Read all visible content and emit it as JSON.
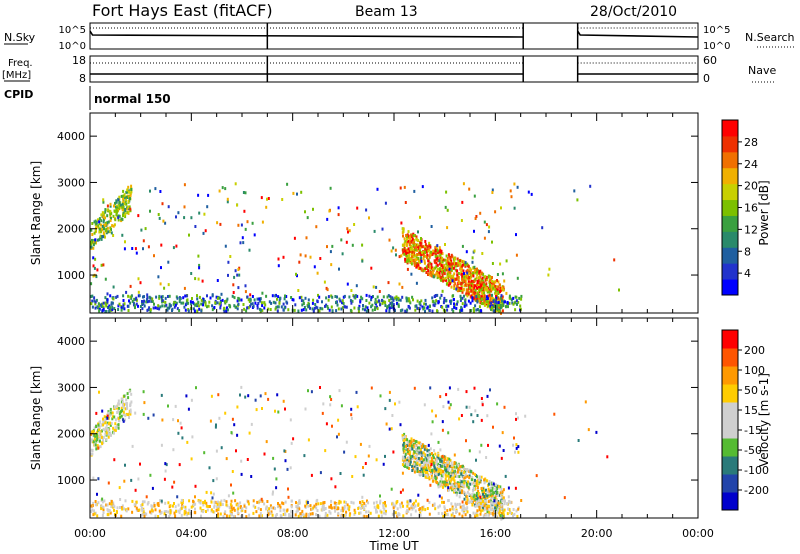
{
  "header": {
    "station": "Fort Hays East (fitACF)",
    "beam": "Beam 13",
    "date": "28/Oct/2010"
  },
  "strips": {
    "noise": {
      "left_label": "N.Sky",
      "right_label": "N.Search",
      "left_ticks": [
        "10^5",
        "10^0"
      ],
      "right_ticks": [
        "10^5",
        "10^0"
      ]
    },
    "freq": {
      "left_label": "Freq.",
      "left_unit": "[MHz]",
      "right_label": "Nave",
      "left_ticks": [
        "18",
        "8"
      ],
      "right_ticks": [
        "60",
        "0"
      ]
    },
    "cpid": {
      "label": "CPID",
      "program": "normal 150"
    }
  },
  "colorbars": {
    "power": {
      "title": "Power [dB]",
      "ticks": [
        "28",
        "24",
        "20",
        "16",
        "12",
        "8",
        "4"
      ],
      "colors": [
        "#0000ff",
        "#2233cc",
        "#1f5fa0",
        "#2a8a6a",
        "#3aa040",
        "#7cc000",
        "#c8d000",
        "#f0b000",
        "#f07000",
        "#ee3000",
        "#ff0000"
      ]
    },
    "velocity": {
      "title": "Velocity [m s-1]",
      "ticks": [
        "200",
        "100",
        "50",
        "15",
        "-15",
        "-50",
        "-100",
        "-200"
      ],
      "colors": [
        "#0000cc",
        "#2244aa",
        "#2a7a7a",
        "#55bb33",
        "#cfcfcf",
        "#cfcfcf",
        "#ffcc00",
        "#ff9900",
        "#ff5500",
        "#ff0000"
      ]
    }
  },
  "chart_data": [
    {
      "type": "heatmap",
      "quantity": "Power",
      "ylabel": "Slant Range [km]",
      "xlabel": "Time UT",
      "xlim": [
        "00:00",
        "24:00"
      ],
      "ylim": [
        180,
        4500
      ],
      "x_ticks": [
        "00:00",
        "04:00",
        "08:00",
        "12:00",
        "16:00",
        "20:00",
        "00:00"
      ],
      "y_ticks": [
        1000,
        2000,
        3000,
        4000
      ],
      "colorbar": "Power [dB]"
    },
    {
      "type": "heatmap",
      "quantity": "Velocity",
      "ylabel": "Slant Range [km]",
      "xlabel": "Time UT",
      "xlim": [
        "00:00",
        "24:00"
      ],
      "ylim": [
        180,
        4500
      ],
      "x_ticks": [
        "00:00",
        "04:00",
        "08:00",
        "12:00",
        "16:00",
        "20:00",
        "00:00"
      ],
      "y_ticks": [
        1000,
        2000,
        3000,
        4000
      ],
      "colorbar": "Velocity [m s-1]"
    }
  ]
}
